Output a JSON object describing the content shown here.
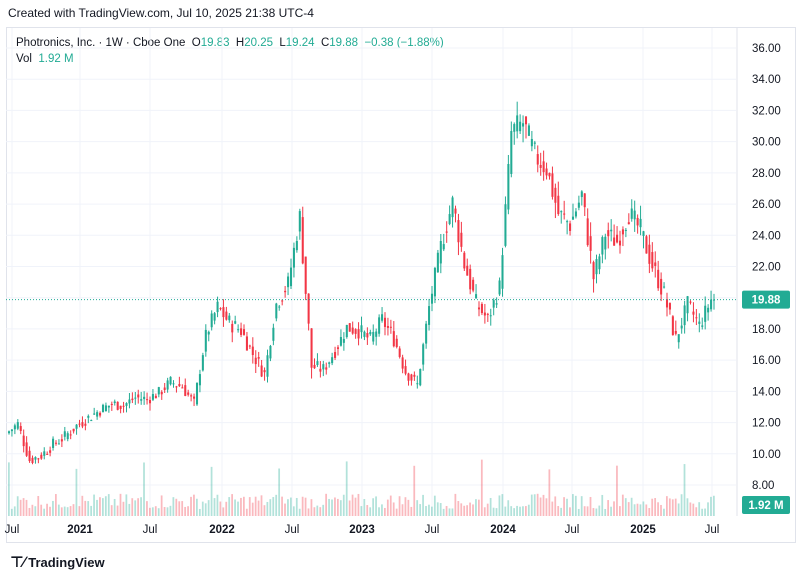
{
  "caption": "Created with TradingView.com, Jul 10, 2025 21:38 UTC-4",
  "legend": {
    "symbol": "Photronics, Inc. · 1W · Cboe One",
    "o_label": "O",
    "o_value": "19.83",
    "h_label": "H",
    "h_value": "20.25",
    "l_label": "L",
    "l_value": "19.24",
    "c_label": "C",
    "c_value": "19.88",
    "change": "−0.38 (−1.88%)",
    "vol_label": "Vol",
    "vol_value": "1.92 M"
  },
  "colors": {
    "up": "#22ab94",
    "down": "#f23645",
    "grid": "#f0f3fa",
    "axis_text": "#131722"
  },
  "brand": "TradingView",
  "chart_data": {
    "type": "candlestick",
    "title": "Photronics, Inc. · 1W · Cboe One",
    "ylim": [
      7.2,
      37.0
    ],
    "y_ticks": [
      "36.00",
      "34.00",
      "32.00",
      "30.00",
      "28.00",
      "26.00",
      "24.00",
      "22.00",
      "20.00",
      "18.00",
      "16.00",
      "14.00",
      "12.00",
      "10.00",
      "8.00"
    ],
    "x_labels": [
      "Jul",
      "2021",
      "Jul",
      "2022",
      "Jul",
      "2023",
      "Jul",
      "2024",
      "Jul",
      "2025",
      "Jul"
    ],
    "last_price": "19.88",
    "last_volume": "1.92 M",
    "grid": true,
    "series": [
      {
        "name": "Price",
        "points": [
          [
            "2020-07",
            11.3
          ],
          [
            "2020-08",
            11.9
          ],
          [
            "2020-09",
            9.6
          ],
          [
            "2020-10",
            9.9
          ],
          [
            "2020-11",
            10.6
          ],
          [
            "2020-12",
            11.1
          ],
          [
            "2021-01",
            11.8
          ],
          [
            "2021-02",
            12.3
          ],
          [
            "2021-03",
            12.8
          ],
          [
            "2021-04",
            13.2
          ],
          [
            "2021-05",
            13.1
          ],
          [
            "2021-06",
            13.6
          ],
          [
            "2021-07",
            13.5
          ],
          [
            "2021-08",
            13.9
          ],
          [
            "2021-09",
            14.6
          ],
          [
            "2021-10",
            14.3
          ],
          [
            "2021-11",
            13.2
          ],
          [
            "2021-12",
            17.6
          ],
          [
            "2022-01",
            19.4
          ],
          [
            "2022-02",
            18.4
          ],
          [
            "2022-03",
            17.9
          ],
          [
            "2022-04",
            16.4
          ],
          [
            "2022-05",
            15.1
          ],
          [
            "2022-06",
            19.6
          ],
          [
            "2022-07",
            20.9
          ],
          [
            "2022-08",
            25.2
          ],
          [
            "2022-09",
            15.6
          ],
          [
            "2022-10",
            15.4
          ],
          [
            "2022-11",
            16.6
          ],
          [
            "2022-12",
            18.1
          ],
          [
            "2023-01",
            17.9
          ],
          [
            "2023-02",
            17.3
          ],
          [
            "2023-03",
            18.6
          ],
          [
            "2023-04",
            17.4
          ],
          [
            "2023-05",
            15.3
          ],
          [
            "2023-06",
            14.4
          ],
          [
            "2023-07",
            19.4
          ],
          [
            "2023-08",
            23.3
          ],
          [
            "2023-09",
            26.1
          ],
          [
            "2023-10",
            22.2
          ],
          [
            "2023-11",
            19.6
          ],
          [
            "2023-12",
            18.6
          ],
          [
            "2024-01",
            20.7
          ],
          [
            "2024-02",
            30.6
          ],
          [
            "2024-03",
            31.2
          ],
          [
            "2024-04",
            29.1
          ],
          [
            "2024-05",
            28.3
          ],
          [
            "2024-06",
            25.4
          ],
          [
            "2024-07",
            24.7
          ],
          [
            "2024-08",
            26.6
          ],
          [
            "2024-09",
            21.3
          ],
          [
            "2024-10",
            24.1
          ],
          [
            "2024-11",
            23.6
          ],
          [
            "2024-12",
            25.4
          ],
          [
            "2025-01",
            24.3
          ],
          [
            "2025-02",
            22.1
          ],
          [
            "2025-03",
            20.2
          ],
          [
            "2025-04",
            17.3
          ],
          [
            "2025-05",
            19.6
          ],
          [
            "2025-06",
            18.2
          ],
          [
            "2025-07",
            19.88
          ]
        ]
      }
    ]
  }
}
